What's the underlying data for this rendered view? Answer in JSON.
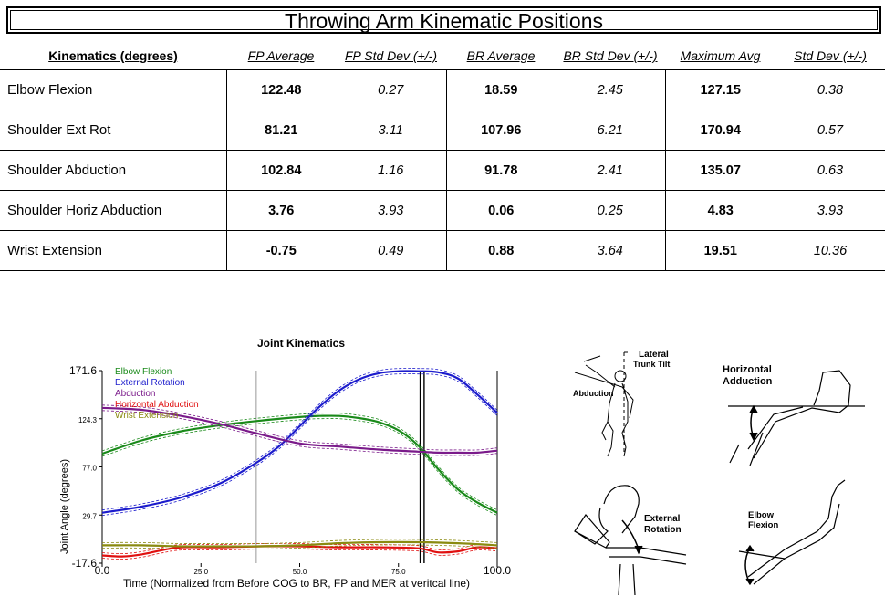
{
  "title": "Throwing Arm Kinematic Positions",
  "table": {
    "headers": [
      "Kinematics (degrees)",
      "FP Average",
      "FP Std Dev (+/-)",
      "BR Average",
      "BR Std Dev (+/-)",
      "Maximum Avg",
      "Std Dev (+/-)"
    ],
    "rows": [
      {
        "label": "Elbow Flexion",
        "fp_avg": "122.48",
        "fp_sd": "0.27",
        "br_avg": "18.59",
        "br_sd": "2.45",
        "max_avg": "127.15",
        "max_sd": "0.38"
      },
      {
        "label": "Shoulder Ext Rot",
        "fp_avg": "81.21",
        "fp_sd": "3.11",
        "br_avg": "107.96",
        "br_sd": "6.21",
        "max_avg": "170.94",
        "max_sd": "0.57"
      },
      {
        "label": "Shoulder Abduction",
        "fp_avg": "102.84",
        "fp_sd": "1.16",
        "br_avg": "91.78",
        "br_sd": "2.41",
        "max_avg": "135.07",
        "max_sd": "0.63"
      },
      {
        "label": "Shoulder Horiz Abduction",
        "fp_avg": "3.76",
        "fp_sd": "3.93",
        "br_avg": "0.06",
        "br_sd": "0.25",
        "max_avg": "4.83",
        "max_sd": "3.93"
      },
      {
        "label": "Wrist Extension",
        "fp_avg": "-0.75",
        "fp_sd": "0.49",
        "br_avg": "0.88",
        "br_sd": "3.64",
        "max_avg": "19.51",
        "max_sd": "10.36"
      }
    ]
  },
  "chart_data": {
    "type": "line",
    "title": "Joint Kinematics",
    "xlabel": "Time (Normalized from Before COG to BR, FP and MER at veritcal line)",
    "ylabel": "Joint Angle (degrees)",
    "xlim": [
      0,
      100
    ],
    "ylim": [
      -17.6,
      171.6
    ],
    "x_ticks": [
      "0.0",
      "25.0",
      "50.0",
      "75.0",
      "100.0"
    ],
    "y_ticks": [
      "171.6",
      "124.3",
      "77.0",
      "29.7",
      "-17.6"
    ],
    "vertical_lines": [
      39,
      80.5,
      81.5
    ],
    "grid": false,
    "legend_position": "top-left",
    "series": [
      {
        "name": "Elbow Flexion",
        "color": "#1a8a1a",
        "x": [
          0,
          10,
          20,
          30,
          39,
          50,
          55,
          60,
          65,
          70,
          75,
          80,
          85,
          90,
          95,
          100
        ],
        "y": [
          90,
          103,
          112,
          118,
          122,
          126,
          127,
          127,
          125,
          121,
          113,
          98,
          75,
          55,
          42,
          32
        ]
      },
      {
        "name": "External Rotation",
        "color": "#1c1ccc",
        "x": [
          0,
          10,
          20,
          30,
          39,
          45,
          50,
          55,
          60,
          65,
          70,
          75,
          80,
          85,
          90,
          95,
          100
        ],
        "y": [
          32,
          38,
          47,
          61,
          81,
          98,
          117,
          136,
          152,
          163,
          169,
          171,
          171,
          170,
          164,
          148,
          130
        ]
      },
      {
        "name": "Abduction",
        "color": "#7a1a8a",
        "x": [
          0,
          10,
          20,
          30,
          39,
          50,
          60,
          70,
          80,
          85,
          90,
          95,
          100
        ],
        "y": [
          135,
          133,
          127,
          119,
          110,
          100,
          97,
          94,
          92,
          91,
          91,
          91,
          93
        ]
      },
      {
        "name": "Horizontal Abduction",
        "color": "#e01010",
        "x": [
          0,
          5,
          10,
          15,
          20,
          30,
          40,
          50,
          60,
          70,
          80,
          85,
          90,
          95,
          100
        ],
        "y": [
          -10,
          -11,
          -9,
          -5,
          -2,
          -2,
          -1,
          -1,
          -2,
          -2,
          -3,
          -7,
          -6,
          -2,
          -3
        ]
      },
      {
        "name": "Wrist Extension",
        "color": "#8a8a10",
        "x": [
          0,
          10,
          20,
          30,
          40,
          50,
          60,
          70,
          80,
          90,
          100
        ],
        "y": [
          0,
          0,
          -1,
          -1,
          -1,
          0,
          2,
          3,
          3,
          2,
          0
        ]
      }
    ]
  },
  "diagrams": {
    "trunk": {
      "tilt_label_1": "Lateral",
      "tilt_label_2": "Trunk Tilt",
      "abduction_label": "Abduction"
    },
    "horizontal": {
      "label_1": "Horizontal",
      "label_2": "Adduction"
    },
    "external": {
      "label_1": "External",
      "label_2": "Rotation"
    },
    "elbow": {
      "label_1": "Elbow",
      "label_2": "Flexion"
    }
  }
}
